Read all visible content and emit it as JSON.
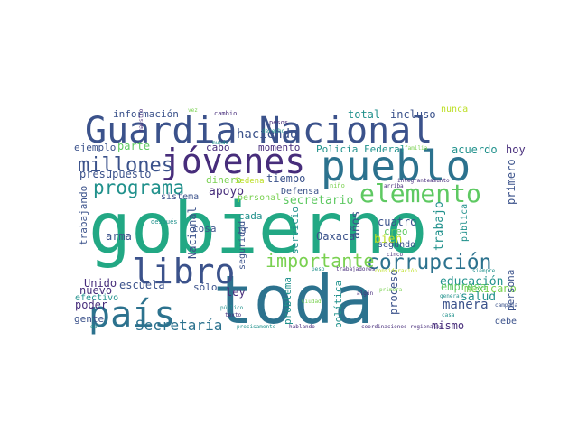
{
  "wordcloud": {
    "background": "#ffffff",
    "palette": "viridis",
    "words": [
      {
        "text": "gobierno",
        "color": "#22a884"
      },
      {
        "text": "toda",
        "color": "#2c728e"
      },
      {
        "text": "Guardia Nacional",
        "color": "#3b528b"
      },
      {
        "text": "pueblo",
        "color": "#2c728e"
      },
      {
        "text": "jóvenes",
        "color": "#472d7b"
      },
      {
        "text": "país",
        "color": "#2c728e"
      },
      {
        "text": "libro",
        "color": "#3b528b"
      },
      {
        "text": "elemento",
        "color": "#5ec962"
      },
      {
        "text": "corrupción",
        "color": "#2c728e"
      },
      {
        "text": "importante",
        "color": "#7ad151"
      },
      {
        "text": "millones",
        "color": "#3b528b"
      },
      {
        "text": "programa",
        "color": "#21918c"
      },
      {
        "text": "Secretaría",
        "color": "#2c728e"
      },
      {
        "text": "educación",
        "color": "#21918c"
      },
      {
        "text": "haciendo",
        "color": "#3b528b"
      },
      {
        "text": "parte",
        "color": "#5ec962"
      },
      {
        "text": "apoyo",
        "color": "#472d7b"
      },
      {
        "text": "manera",
        "color": "#3b528b"
      },
      {
        "text": "información",
        "color": "#3b528b"
      },
      {
        "text": "total",
        "color": "#21918c"
      },
      {
        "text": "incluso",
        "color": "#3b528b"
      },
      {
        "text": "nunca",
        "color": "#bddf26"
      },
      {
        "text": "presupuesto",
        "color": "#3b528b"
      },
      {
        "text": "momento",
        "color": "#472d7b"
      },
      {
        "text": "Policía Federal",
        "color": "#21918c"
      },
      {
        "text": "acuerdo",
        "color": "#21918c"
      },
      {
        "text": "ejemplo",
        "color": "#3b528b"
      },
      {
        "text": "cabo",
        "color": "#472d7b"
      },
      {
        "text": "secretario",
        "color": "#5ec962"
      },
      {
        "text": "salud",
        "color": "#21918c"
      },
      {
        "text": "mismo",
        "color": "#472d7b"
      },
      {
        "text": "mexicano",
        "color": "#7ad151"
      },
      {
        "text": "empresa",
        "color": "#5ec962"
      },
      {
        "text": "tiempo",
        "color": "#3b528b"
      },
      {
        "text": "dinero",
        "color": "#7ad151"
      },
      {
        "text": "bien",
        "color": "#bddf26"
      },
      {
        "text": "años",
        "color": "#3b528b"
      },
      {
        "text": "cuatro",
        "color": "#3b528b"
      },
      {
        "text": "trabajo",
        "color": "#21918c"
      },
      {
        "text": "creo",
        "color": "#5ec962"
      },
      {
        "text": "Oaxaca",
        "color": "#3b528b"
      },
      {
        "text": "proceso",
        "color": "#3b528b"
      },
      {
        "text": "primero",
        "color": "#3b528b"
      },
      {
        "text": "hoy",
        "color": "#472d7b"
      },
      {
        "text": "persona",
        "color": "#3b528b"
      },
      {
        "text": "pública",
        "color": "#21918c"
      },
      {
        "text": "Unido",
        "color": "#472d7b"
      },
      {
        "text": "nuevo",
        "color": "#472d7b"
      },
      {
        "text": "escuela",
        "color": "#3b528b"
      },
      {
        "text": "arma",
        "color": "#3b528b"
      },
      {
        "text": "trabajando",
        "color": "#3b528b"
      },
      {
        "text": "cosa",
        "color": "#3b528b"
      },
      {
        "text": "Nacional",
        "color": "#3b528b"
      },
      {
        "text": "ley",
        "color": "#472d7b"
      },
      {
        "text": "sólo",
        "color": "#3b528b"
      },
      {
        "text": "poder",
        "color": "#472d7b"
      },
      {
        "text": "gente",
        "color": "#3b528b"
      },
      {
        "text": "efectivo",
        "color": "#21918c"
      },
      {
        "text": "problema",
        "color": "#21918c"
      },
      {
        "text": "servicio",
        "color": "#21918c"
      },
      {
        "text": "política",
        "color": "#21918c"
      },
      {
        "text": "seguridad",
        "color": "#3b528b"
      },
      {
        "text": "cada",
        "color": "#21918c"
      },
      {
        "text": "ir",
        "color": "#3b528b"
      },
      {
        "text": "Defensa",
        "color": "#3b528b"
      },
      {
        "text": "personal",
        "color": "#7ad151"
      },
      {
        "text": "Sedena",
        "color": "#bddf26"
      },
      {
        "text": "sistema",
        "color": "#3b528b"
      },
      {
        "text": "segundo",
        "color": "#3b528b"
      },
      {
        "text": "debe",
        "color": "#3b528b"
      },
      {
        "text": "después",
        "color": "#21918c"
      },
      {
        "text": "maestro",
        "color": "#472d7b"
      },
      {
        "text": "vez",
        "color": "#7ad151"
      },
      {
        "text": "cambio",
        "color": "#472d7b"
      },
      {
        "text": "mundo",
        "color": "#21918c"
      },
      {
        "text": "pesos",
        "color": "#472d7b"
      },
      {
        "text": "derecho",
        "color": "#21918c"
      },
      {
        "text": "familia",
        "color": "#7ad151"
      },
      {
        "text": "niño",
        "color": "#7ad151"
      },
      {
        "text": "asunto",
        "color": "#472d7b"
      },
      {
        "text": "integrante",
        "color": "#472d7b"
      },
      {
        "text": "arriba",
        "color": "#472d7b"
      },
      {
        "text": "cinco",
        "color": "#472d7b"
      },
      {
        "text": "peso",
        "color": "#21918c"
      },
      {
        "text": "trabajadores",
        "color": "#472d7b"
      },
      {
        "text": "siempre",
        "color": "#21918c"
      },
      {
        "text": "consideración",
        "color": "#bddf26"
      },
      {
        "text": "algún",
        "color": "#472d7b"
      },
      {
        "text": "Ciudad",
        "color": "#7ad151"
      },
      {
        "text": "primera",
        "color": "#7ad151"
      },
      {
        "text": "general",
        "color": "#21918c"
      },
      {
        "text": "campaña",
        "color": "#3b528b"
      },
      {
        "text": "público",
        "color": "#21918c"
      },
      {
        "text": "texto",
        "color": "#472d7b"
      },
      {
        "text": "casa",
        "color": "#21918c"
      },
      {
        "text": "dar",
        "color": "#21918c"
      },
      {
        "text": "precisamente",
        "color": "#21918c"
      },
      {
        "text": "hablando",
        "color": "#472d7b"
      },
      {
        "text": "coordinaciones regionales",
        "color": "#472d7b"
      }
    ]
  }
}
